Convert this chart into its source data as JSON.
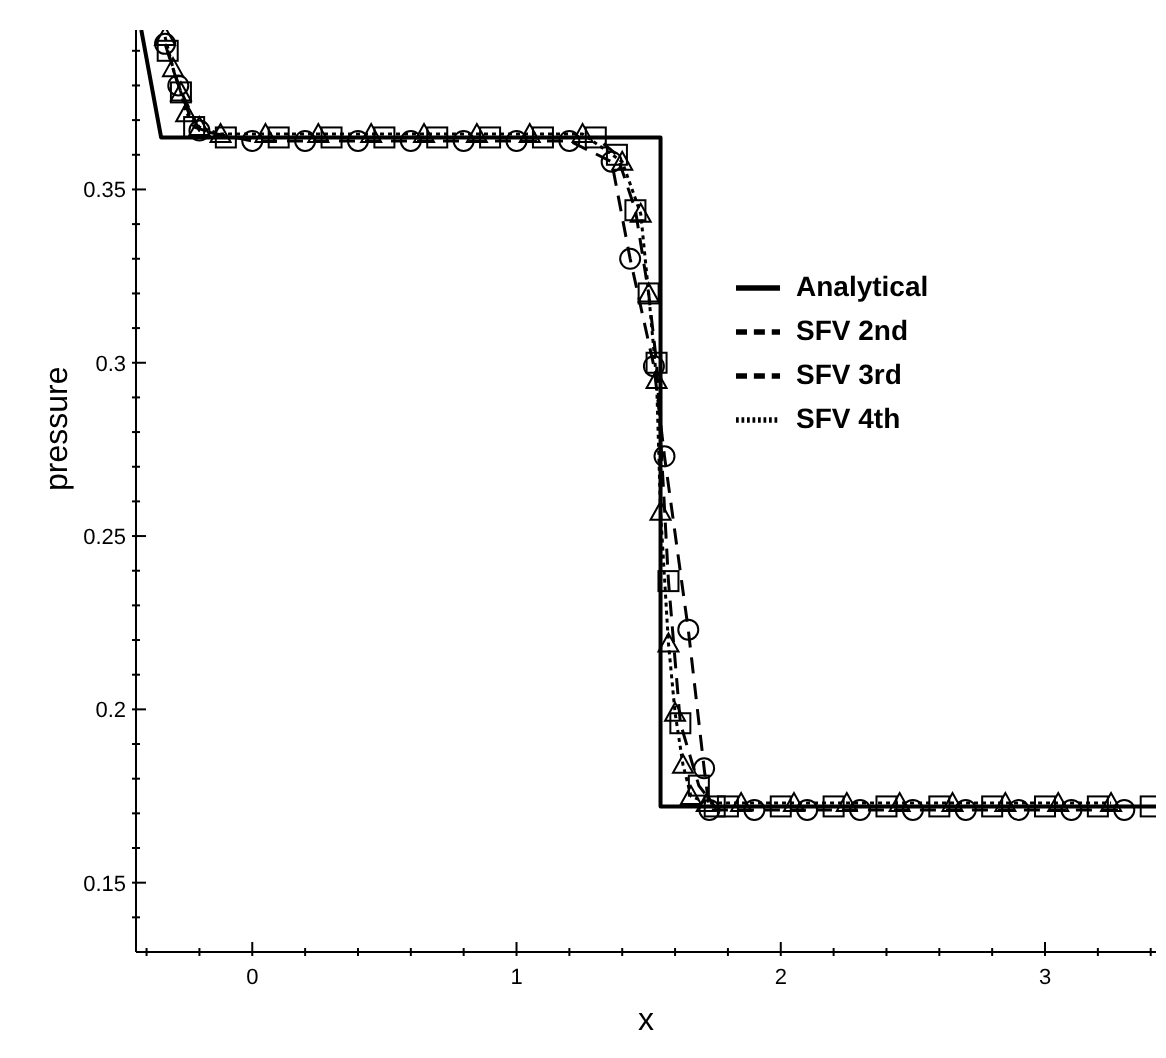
{
  "chart_data": {
    "type": "line",
    "xlabel": "x",
    "ylabel": "pressure",
    "xlim": [
      -0.44,
      3.42
    ],
    "xticks": [
      {
        "value": -0.4,
        "label": null
      },
      {
        "value": -0.2,
        "label": null
      },
      0,
      {
        "value": 0.2,
        "label": null
      },
      {
        "value": 0.4,
        "label": null
      },
      {
        "value": 0.6,
        "label": null
      },
      {
        "value": 0.8,
        "label": null
      },
      1,
      {
        "value": 1.2,
        "label": null
      },
      {
        "value": 1.4,
        "label": null
      },
      {
        "value": 1.6,
        "label": null
      },
      {
        "value": 1.8,
        "label": null
      },
      2,
      {
        "value": 2.2,
        "label": null
      },
      {
        "value": 2.4,
        "label": null
      },
      {
        "value": 2.6,
        "label": null
      },
      {
        "value": 2.8,
        "label": null
      },
      3,
      {
        "value": 3.2,
        "label": null
      },
      {
        "value": 3.4,
        "label": null
      }
    ],
    "ylim": [
      0.13,
      0.396
    ],
    "yticks": [
      {
        "value": 0.14,
        "label": null
      },
      0.15,
      {
        "value": 0.16,
        "label": null
      },
      {
        "value": 0.17,
        "label": null
      },
      {
        "value": 0.18,
        "label": null
      },
      {
        "value": 0.19,
        "label": null
      },
      0.2,
      {
        "value": 0.21,
        "label": null
      },
      {
        "value": 0.22,
        "label": null
      },
      {
        "value": 0.23,
        "label": null
      },
      {
        "value": 0.24,
        "label": null
      },
      0.25,
      {
        "value": 0.26,
        "label": null
      },
      {
        "value": 0.27,
        "label": null
      },
      {
        "value": 0.28,
        "label": null
      },
      {
        "value": 0.29,
        "label": null
      },
      0.3,
      {
        "value": 0.31,
        "label": null
      },
      {
        "value": 0.32,
        "label": null
      },
      {
        "value": 0.33,
        "label": null
      },
      {
        "value": 0.34,
        "label": null
      },
      0.35,
      {
        "value": 0.36,
        "label": null
      },
      {
        "value": 0.37,
        "label": null
      },
      {
        "value": 0.38,
        "label": null
      },
      {
        "value": 0.39,
        "label": null
      }
    ],
    "grid": false,
    "legend": "right",
    "series": [
      {
        "name": "Analytical",
        "color": "#000000",
        "line_style": "solid",
        "marker": "none",
        "x": [
          -0.42,
          -0.345,
          1.545,
          1.545,
          3.42
        ],
        "values": [
          0.396,
          0.365,
          0.365,
          0.172,
          0.172
        ]
      },
      {
        "name": "SFV 2nd",
        "color": "#000000",
        "line_style": "dashed",
        "marker": "circle",
        "x": [
          -0.33,
          -0.28,
          -0.2,
          0.0,
          0.2,
          0.4,
          0.6,
          0.8,
          1.0,
          1.2,
          1.36,
          1.43,
          1.52,
          1.56,
          1.65,
          1.71,
          1.73,
          1.9,
          2.1,
          2.3,
          2.5,
          2.7,
          2.9,
          3.1,
          3.3
        ],
        "values": [
          0.392,
          0.38,
          0.367,
          0.364,
          0.364,
          0.364,
          0.364,
          0.364,
          0.364,
          0.364,
          0.358,
          0.33,
          0.299,
          0.273,
          0.223,
          0.183,
          0.171,
          0.171,
          0.171,
          0.171,
          0.171,
          0.171,
          0.171,
          0.171,
          0.171
        ]
      },
      {
        "name": "SFV 3rd",
        "color": "#000000",
        "line_style": "dashed",
        "marker": "square",
        "x": [
          -0.32,
          -0.27,
          -0.22,
          -0.1,
          0.1,
          0.3,
          0.5,
          0.7,
          0.9,
          1.1,
          1.3,
          1.38,
          1.45,
          1.5,
          1.53,
          1.575,
          1.62,
          1.69,
          1.75,
          1.8,
          2.0,
          2.2,
          2.4,
          2.6,
          2.8,
          3.0,
          3.2,
          3.4
        ],
        "values": [
          0.39,
          0.378,
          0.368,
          0.365,
          0.365,
          0.365,
          0.365,
          0.365,
          0.365,
          0.365,
          0.365,
          0.36,
          0.344,
          0.32,
          0.3,
          0.237,
          0.196,
          0.178,
          0.172,
          0.172,
          0.172,
          0.172,
          0.172,
          0.172,
          0.172,
          0.172,
          0.172,
          0.172
        ]
      },
      {
        "name": "SFV 4th",
        "color": "#000000",
        "line_style": "dotted",
        "marker": "triangle",
        "x": [
          -0.33,
          -0.3,
          -0.27,
          -0.25,
          -0.2,
          -0.12,
          0.05,
          0.25,
          0.45,
          0.65,
          0.85,
          1.05,
          1.25,
          1.4,
          1.47,
          1.5,
          1.53,
          1.545,
          1.575,
          1.6,
          1.63,
          1.66,
          1.72,
          1.85,
          2.05,
          2.25,
          2.45,
          2.65,
          2.85,
          3.05,
          3.25
        ],
        "values": [
          0.394,
          0.385,
          0.378,
          0.372,
          0.368,
          0.366,
          0.366,
          0.366,
          0.366,
          0.366,
          0.366,
          0.366,
          0.366,
          0.358,
          0.343,
          0.32,
          0.295,
          0.257,
          0.219,
          0.199,
          0.184,
          0.175,
          0.173,
          0.173,
          0.173,
          0.173,
          0.173,
          0.173,
          0.173,
          0.173,
          0.173
        ]
      }
    ]
  }
}
